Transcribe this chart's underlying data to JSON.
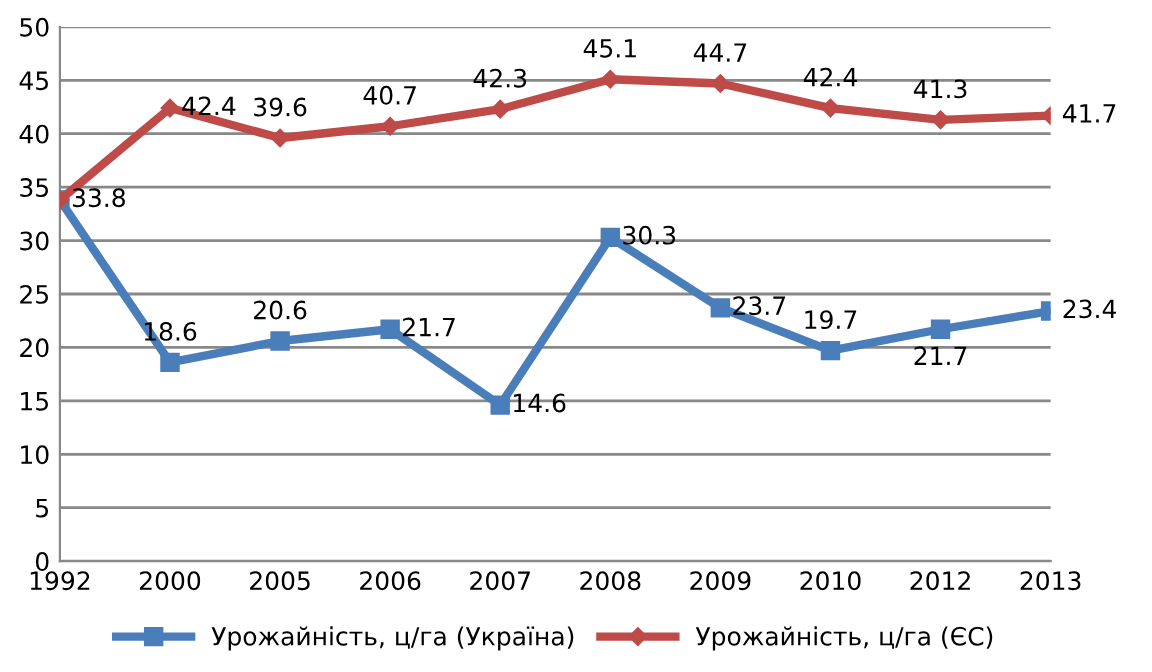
{
  "chart_data": {
    "type": "line",
    "categories": [
      "1992",
      "2000",
      "2005",
      "2006",
      "2007",
      "2008",
      "2009",
      "2010",
      "2012",
      "2013"
    ],
    "series": [
      {
        "name": "Урожайність, ц/га (Україна)",
        "color": "#4a7ebb",
        "marker": "square",
        "values": [
          33.8,
          18.6,
          20.6,
          21.7,
          14.6,
          30.3,
          23.7,
          19.7,
          21.7,
          23.4
        ],
        "value_labels": [
          "33.8",
          "18.6",
          "20.6",
          "21.7",
          "14.6",
          "30.3",
          "23.7",
          "19.7",
          "21.7",
          "23.4"
        ]
      },
      {
        "name": "Урожайність, ц/га (ЄС)",
        "color": "#be4b48",
        "marker": "diamond",
        "values": [
          33.8,
          42.4,
          39.6,
          40.7,
          42.3,
          45.1,
          44.7,
          42.4,
          41.3,
          41.7
        ],
        "value_labels": [
          null,
          "42.4",
          "39.6",
          "40.7",
          "42.3",
          "45.1",
          "44.7",
          "42.4",
          "41.3",
          "41.7"
        ]
      }
    ],
    "ylim": [
      0,
      50
    ],
    "yticks": [
      0,
      5,
      10,
      15,
      20,
      25,
      30,
      35,
      40,
      45,
      50
    ],
    "grid": "y",
    "legend": "bottom",
    "line_style": "solid"
  }
}
